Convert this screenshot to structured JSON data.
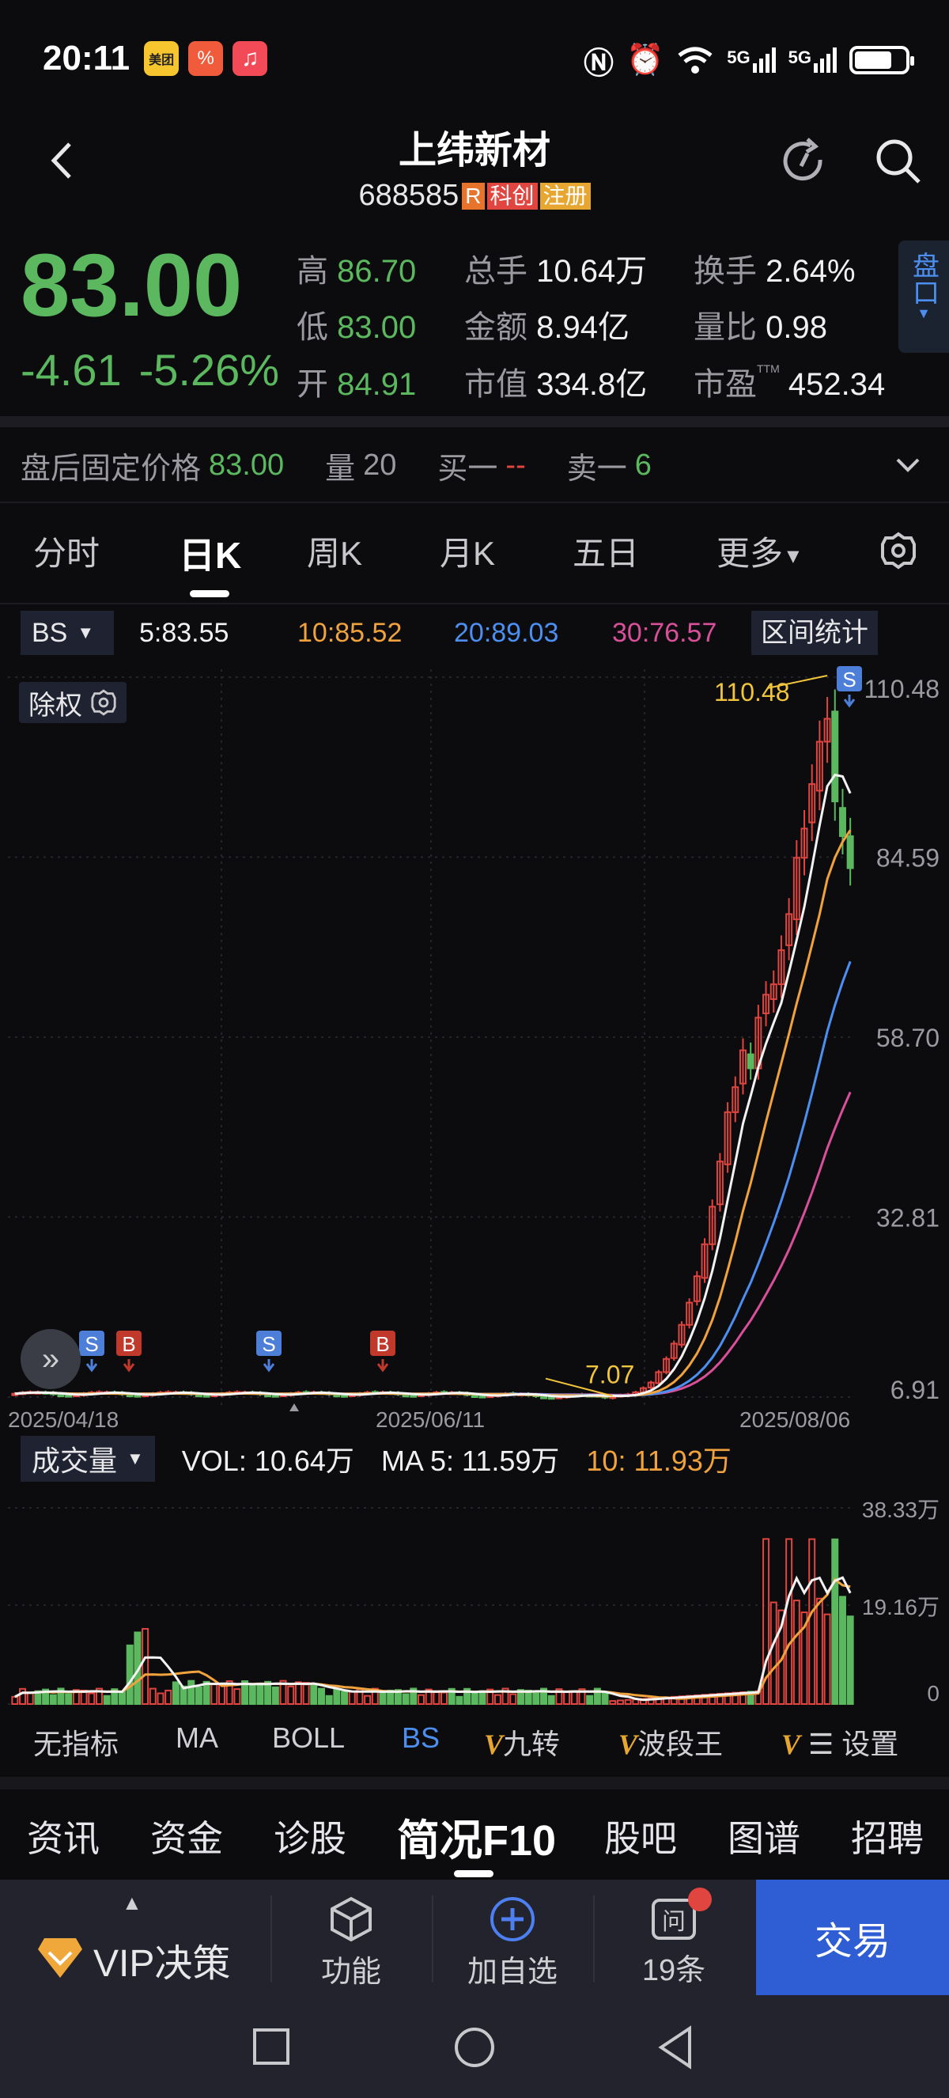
{
  "status_bar": {
    "time": "20:11",
    "apps": [
      {
        "name": "meituan-icon",
        "label": "美团",
        "color": "#f7c52e"
      },
      {
        "name": "tomato-icon",
        "label": "%",
        "color": "#f05b3b"
      },
      {
        "name": "music-icon",
        "label": "♫",
        "color": "#f24a56"
      }
    ],
    "network": "5G",
    "network2": "5G"
  },
  "header": {
    "title": "上纬新材",
    "code": "688585",
    "tags": [
      {
        "text": "R",
        "color": "#e8742b"
      },
      {
        "text": "科创",
        "color": "#e0453f"
      },
      {
        "text": "注册",
        "color": "#e6a630"
      }
    ]
  },
  "quote": {
    "price": "83.00",
    "change": "-4.61",
    "change_pct": "-5.26%",
    "stats": [
      [
        {
          "label": "高",
          "value": "86.70",
          "tone": "green"
        },
        {
          "label": "总手",
          "value": "10.64万",
          "tone": "white"
        },
        {
          "label": "换手",
          "value": "2.64%",
          "tone": "white"
        }
      ],
      [
        {
          "label": "低",
          "value": "83.00",
          "tone": "green"
        },
        {
          "label": "金额",
          "value": "8.94亿",
          "tone": "white"
        },
        {
          "label": "量比",
          "value": "0.98",
          "tone": "white"
        }
      ],
      [
        {
          "label": "开",
          "value": "84.91",
          "tone": "green"
        },
        {
          "label": "市值",
          "value": "334.8亿",
          "tone": "white"
        },
        {
          "label": "市盈",
          "value": "452.34",
          "tone": "white"
        }
      ]
    ],
    "pe_sup": "TTM",
    "side_tab": "盘口"
  },
  "after_hours": {
    "label": "盘后固定价格",
    "price": "83.00",
    "vol_label": "量",
    "vol": "20",
    "buy_label": "买一",
    "buy": "--",
    "sell_label": "卖一",
    "sell": "6"
  },
  "period_tabs": [
    "分时",
    "日K",
    "周K",
    "月K",
    "五日",
    "更多"
  ],
  "active_tab": 1,
  "ma_bar": {
    "bs_label": "BS",
    "ma": [
      {
        "text": "5:83.55",
        "color": "#f2f2f2"
      },
      {
        "text": "10:85.52",
        "color": "#f0a23c"
      },
      {
        "text": "20:89.03",
        "color": "#4d8ff0"
      },
      {
        "text": "30:76.57",
        "color": "#d84f9a"
      }
    ],
    "range_btn": "区间统计"
  },
  "kline": {
    "exright_label": "除权",
    "y_ticks": [
      "110.48",
      "84.59",
      "58.70",
      "32.81",
      "6.91"
    ],
    "x_ticks": [
      "2025/04/18",
      "2025/06/11",
      "2025/08/06"
    ],
    "max_label": "110.48",
    "min_label": "7.07",
    "markers": [
      "S",
      "B",
      "S",
      "B",
      "S"
    ]
  },
  "volume": {
    "dropdown": "成交量",
    "vol_text": "VOL:  10.64万",
    "ma5_text": "MA 5:  11.59万",
    "ma10_text": "10:  11.93万",
    "y_ticks": [
      "38.33万",
      "19.16万",
      "0"
    ]
  },
  "indicator_tabs": [
    "无指标",
    "MA",
    "BOLL",
    "BS",
    "九转",
    "波段王"
  ],
  "indicator_v_prefix": "V",
  "indicator_settings": "设置",
  "info_tabs": [
    "资讯",
    "资金",
    "诊股",
    "简况F10",
    "股吧",
    "图谱",
    "招聘"
  ],
  "info_active": 3,
  "bottom_bar": {
    "vip": "VIP决策",
    "func": "功能",
    "add": "加自选",
    "ask": "19条",
    "trade": "交易"
  },
  "chart_data": {
    "type": "candlestick",
    "title": "",
    "xlabel": "",
    "ylabel": "",
    "x_ticks": [
      "2025/04/18",
      "2025/06/11",
      "2025/08/06"
    ],
    "ylim": [
      6.91,
      110.48
    ],
    "y_ticks": [
      6.91,
      32.81,
      58.7,
      84.59,
      110.48
    ],
    "ma": {
      "MA5": 83.55,
      "MA10": 85.52,
      "MA20": 89.03,
      "MA30": 76.57
    },
    "annotated_high": 110.48,
    "annotated_low": 7.07,
    "close_recent": [
      7.1,
      7.2,
      7.3,
      7.6,
      8.2,
      9.0,
      10.5,
      12.4,
      14.6,
      17.3,
      20.5,
      24.3,
      28.9,
      34.3,
      40.8,
      47.9,
      51.5,
      56.8,
      54.2,
      61.5,
      64.8,
      66.3,
      71.2,
      76.4,
      84.5,
      88.7,
      95.1,
      101.2,
      104.5,
      92.6,
      87.61,
      83.0
    ],
    "volume_ylim": [
      0,
      38.33
    ],
    "volume_unit": "万",
    "volume_now": 10.64,
    "volume_ma5": 11.59,
    "volume_ma10": 11.93
  }
}
